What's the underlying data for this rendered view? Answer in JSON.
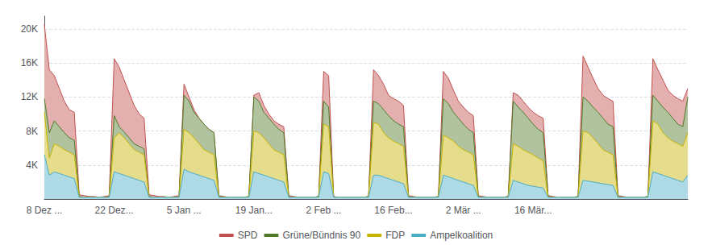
{
  "chart_data": {
    "type": "area",
    "categories": [
      "8 Dez ...",
      null,
      null,
      null,
      null,
      null,
      null,
      null,
      null,
      null,
      null,
      null,
      null,
      null,
      "22 Dez...",
      null,
      null,
      null,
      null,
      null,
      null,
      null,
      null,
      null,
      null,
      null,
      null,
      null,
      "5 Jan ...",
      null,
      null,
      null,
      null,
      null,
      null,
      null,
      null,
      null,
      null,
      null,
      null,
      null,
      "19 Jan...",
      null,
      null,
      null,
      null,
      null,
      null,
      null,
      null,
      null,
      null,
      null,
      null,
      null,
      "2 Feb ...",
      null,
      null,
      null,
      null,
      null,
      null,
      null,
      null,
      null,
      null,
      null,
      null,
      null,
      "16 Feb...",
      null,
      null,
      null,
      null,
      null,
      null,
      null,
      null,
      null,
      null,
      null,
      null,
      null,
      "2 Mär ...",
      null,
      null,
      null,
      null,
      null,
      null,
      null,
      null,
      null,
      null,
      null,
      null,
      null,
      "16 Mär...",
      null,
      null,
      null,
      null,
      null,
      null,
      null,
      null,
      null,
      null,
      null,
      null,
      null,
      null,
      null,
      null,
      null,
      null,
      null,
      null,
      null,
      null,
      null,
      null,
      null,
      null,
      null,
      null,
      null,
      null,
      null
    ],
    "series": [
      {
        "name": "SPD",
        "color": "#c0504d",
        "values": [
          20500,
          15200,
          14500,
          13000,
          11500,
          10500,
          10200,
          500,
          400,
          300,
          300,
          200,
          300,
          400,
          16500,
          15500,
          14000,
          12500,
          11000,
          10000,
          9500,
          500,
          400,
          300,
          300,
          200,
          300,
          400,
          13500,
          12000,
          10500,
          9500,
          8800,
          8200,
          7800,
          400,
          300,
          200,
          200,
          200,
          200,
          300,
          12200,
          12500,
          11000,
          10000,
          9200,
          8800,
          8500,
          400,
          300,
          200,
          200,
          200,
          200,
          300,
          15000,
          14500,
          300,
          200,
          200,
          200,
          200,
          200,
          200,
          300,
          15200,
          14500,
          13500,
          12200,
          11800,
          11500,
          11000,
          400,
          300,
          200,
          200,
          200,
          200,
          300,
          15000,
          14200,
          12800,
          11500,
          10800,
          10200,
          9800,
          400,
          300,
          200,
          200,
          200,
          200,
          300,
          12500,
          12200,
          11500,
          10800,
          10200,
          9800,
          9500,
          400,
          300,
          200,
          200,
          200,
          200,
          300,
          16800,
          15500,
          14200,
          13000,
          12200,
          11800,
          11500,
          400,
          300,
          200,
          200,
          200,
          200,
          300,
          16500,
          15200,
          14000,
          12800,
          12200,
          11800,
          11500,
          13000
        ]
      },
      {
        "name": "Grüne/Bündnis 90",
        "color": "#4f7a28",
        "values": [
          11800,
          7800,
          9200,
          8500,
          7800,
          7200,
          6900,
          300,
          200,
          200,
          200,
          200,
          200,
          300,
          9800,
          8500,
          7900,
          7200,
          6500,
          6200,
          5900,
          300,
          200,
          200,
          200,
          200,
          200,
          300,
          12200,
          11500,
          10200,
          9500,
          8800,
          8200,
          7800,
          300,
          200,
          200,
          200,
          200,
          200,
          300,
          12000,
          11500,
          10200,
          9500,
          8800,
          8200,
          7800,
          300,
          200,
          200,
          200,
          200,
          200,
          300,
          11500,
          10800,
          200,
          200,
          200,
          200,
          200,
          200,
          200,
          300,
          11500,
          11200,
          10500,
          9800,
          9200,
          8800,
          8500,
          300,
          200,
          200,
          200,
          200,
          200,
          300,
          11800,
          11200,
          10200,
          9500,
          8800,
          8200,
          7800,
          300,
          200,
          200,
          200,
          200,
          200,
          300,
          11500,
          10800,
          10200,
          9500,
          8800,
          8200,
          7800,
          300,
          200,
          200,
          200,
          200,
          200,
          300,
          12000,
          11500,
          10800,
          10200,
          9500,
          8800,
          8500,
          300,
          200,
          200,
          200,
          200,
          200,
          300,
          12200,
          11500,
          10800,
          10200,
          9500,
          8800,
          8500,
          12000
        ]
      },
      {
        "name": "FDP",
        "color": "#c8b400",
        "values": [
          10200,
          4800,
          6500,
          6200,
          5800,
          5500,
          5200,
          200,
          200,
          200,
          200,
          200,
          200,
          200,
          7200,
          7800,
          7200,
          6500,
          5800,
          5500,
          5200,
          200,
          200,
          200,
          200,
          200,
          200,
          200,
          8200,
          7800,
          7200,
          6500,
          5800,
          5500,
          5200,
          200,
          200,
          200,
          200,
          200,
          200,
          200,
          8000,
          7800,
          7200,
          6500,
          5800,
          5500,
          5200,
          200,
          200,
          200,
          200,
          200,
          200,
          200,
          8800,
          8500,
          200,
          200,
          200,
          200,
          200,
          200,
          200,
          200,
          9000,
          8800,
          7800,
          7200,
          6800,
          6500,
          6200,
          200,
          200,
          200,
          200,
          200,
          200,
          200,
          7500,
          7200,
          6800,
          6200,
          5800,
          5500,
          5200,
          200,
          200,
          200,
          200,
          200,
          200,
          200,
          6500,
          6200,
          5800,
          5500,
          5200,
          4800,
          4500,
          200,
          200,
          200,
          200,
          200,
          200,
          200,
          8000,
          7800,
          7200,
          6500,
          5800,
          5500,
          5200,
          200,
          200,
          200,
          200,
          200,
          200,
          200,
          9200,
          8800,
          7800,
          7200,
          6800,
          6500,
          6200,
          7800
        ]
      },
      {
        "name": "Ampelkoalition",
        "color": "#4bacc6",
        "values": [
          5200,
          2800,
          3200,
          3000,
          2800,
          2600,
          2400,
          200,
          200,
          200,
          200,
          200,
          200,
          200,
          3200,
          3000,
          2800,
          2600,
          2400,
          2200,
          2000,
          200,
          200,
          200,
          200,
          200,
          200,
          200,
          3500,
          3200,
          3000,
          2800,
          2600,
          2400,
          2200,
          200,
          200,
          200,
          200,
          200,
          200,
          200,
          3200,
          3000,
          2800,
          2600,
          2400,
          2200,
          2000,
          200,
          200,
          200,
          200,
          200,
          200,
          200,
          3200,
          3000,
          200,
          200,
          200,
          200,
          200,
          200,
          200,
          200,
          2800,
          2800,
          2600,
          2400,
          2200,
          2000,
          1800,
          200,
          200,
          200,
          200,
          200,
          200,
          200,
          2800,
          2600,
          2400,
          2200,
          2000,
          1800,
          1600,
          200,
          200,
          200,
          200,
          200,
          200,
          200,
          2200,
          2000,
          1800,
          1600,
          1500,
          1400,
          1300,
          200,
          200,
          200,
          200,
          200,
          200,
          200,
          2200,
          2100,
          2000,
          1900,
          1800,
          1700,
          1600,
          200,
          200,
          200,
          200,
          200,
          200,
          200,
          3200,
          3000,
          2800,
          2600,
          2400,
          2200,
          2000,
          2800
        ]
      }
    ],
    "ylim": [
      0,
      21500
    ],
    "yticks": [
      {
        "value": 4000,
        "label": "4K"
      },
      {
        "value": 8000,
        "label": "8K"
      },
      {
        "value": 12000,
        "label": "12K"
      },
      {
        "value": 16000,
        "label": "16K"
      },
      {
        "value": 20000,
        "label": "20K"
      }
    ],
    "grid": true,
    "legend": "bottom"
  }
}
